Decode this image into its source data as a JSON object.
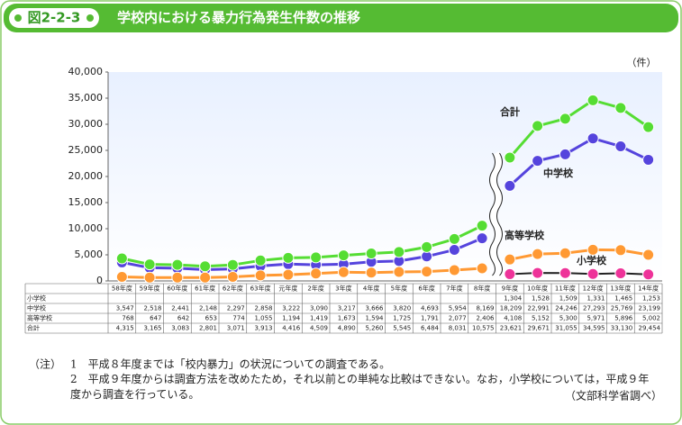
{
  "figure_label": "図2-2-3",
  "chart_data": {
    "type": "line",
    "title": "学校内における暴力行為発生件数の推移",
    "unit": "（件）",
    "categories": [
      "58年度",
      "59年度",
      "60年度",
      "61年度",
      "62年度",
      "63年度",
      "元年度",
      "2年度",
      "3年度",
      "4年度",
      "5年度",
      "6年度",
      "7年度",
      "8年度",
      "9年度",
      "10年度",
      "11年度",
      "12年度",
      "13年度",
      "14年度"
    ],
    "x_break_after_index": 13,
    "ylim": [
      0,
      40000
    ],
    "yticks": [
      0,
      {
        "value": 5000,
        "label": "5,000"
      },
      {
        "value": 10000,
        "label": "10,000"
      },
      {
        "value": 15000,
        "label": "15,000"
      },
      {
        "value": 20000,
        "label": "20,000"
      },
      {
        "value": 25000,
        "label": "25,000"
      },
      {
        "value": 30000,
        "label": "30,000"
      },
      {
        "value": 35000,
        "label": "35,000"
      },
      {
        "value": 40000,
        "label": "40,000"
      }
    ],
    "series": [
      {
        "name": "小学校",
        "color": "#ee3399",
        "values": [
          null,
          null,
          null,
          null,
          null,
          null,
          null,
          null,
          null,
          null,
          null,
          null,
          null,
          null,
          1304,
          1528,
          1509,
          1331,
          1465,
          1253
        ],
        "value_labels": [
          null,
          null,
          null,
          null,
          null,
          null,
          null,
          null,
          null,
          null,
          null,
          null,
          null,
          null,
          "1,304",
          "1,528",
          "1,509",
          "1,331",
          "1,465",
          "1,253"
        ]
      },
      {
        "name": "中学校",
        "color": "#5544dd",
        "values": [
          3547,
          2518,
          2441,
          2148,
          2297,
          2858,
          3222,
          3090,
          3217,
          3666,
          3820,
          4693,
          5954,
          8169,
          18209,
          22991,
          24246,
          27293,
          25769,
          23199
        ],
        "value_labels": [
          "3,547",
          "2,518",
          "2,441",
          "2,148",
          "2,297",
          "2,858",
          "3,222",
          "3,090",
          "3,217",
          "3,666",
          "3,820",
          "4,693",
          "5,954",
          "8,169",
          "18,209",
          "22,991",
          "24,246",
          "27,293",
          "25,769",
          "23,199"
        ]
      },
      {
        "name": "高等学校",
        "color": "#ff9933",
        "values": [
          768,
          647,
          642,
          653,
          774,
          1055,
          1194,
          1419,
          1673,
          1594,
          1725,
          1791,
          2077,
          2406,
          4108,
          5152,
          5300,
          5971,
          5896,
          5002
        ],
        "value_labels": [
          "768",
          "647",
          "642",
          "653",
          "774",
          "1,055",
          "1,194",
          "1,419",
          "1,673",
          "1,594",
          "1,725",
          "1,791",
          "2,077",
          "2,406",
          "4,108",
          "5,152",
          "5,300",
          "5,971",
          "5,896",
          "5,002"
        ]
      },
      {
        "name": "合計",
        "color": "#55dd33",
        "values": [
          4315,
          3165,
          3083,
          2801,
          3071,
          3913,
          4416,
          4509,
          4890,
          5260,
          5545,
          6484,
          8031,
          10575,
          23621,
          29671,
          31055,
          34595,
          33130,
          29454
        ],
        "value_labels": [
          "4,315",
          "3,165",
          "3,083",
          "2,801",
          "3,071",
          "3,913",
          "4,416",
          "4,509",
          "4,890",
          "5,260",
          "5,545",
          "6,484",
          "8,031",
          "10,575",
          "23,621",
          "29,671",
          "31,055",
          "34,595",
          "33,130",
          "29,454"
        ]
      }
    ]
  },
  "notes": {
    "label": "（注）",
    "items": [
      "1　平成８年度までは「校内暴力」の状況についての調査である。",
      "2　平成９年度からは調査方法を改めたため，それ以前との単純な比較はできない。なお，小学校については，平成９年度から調査を行っている。"
    ],
    "source": "（文部科学省調べ）"
  }
}
